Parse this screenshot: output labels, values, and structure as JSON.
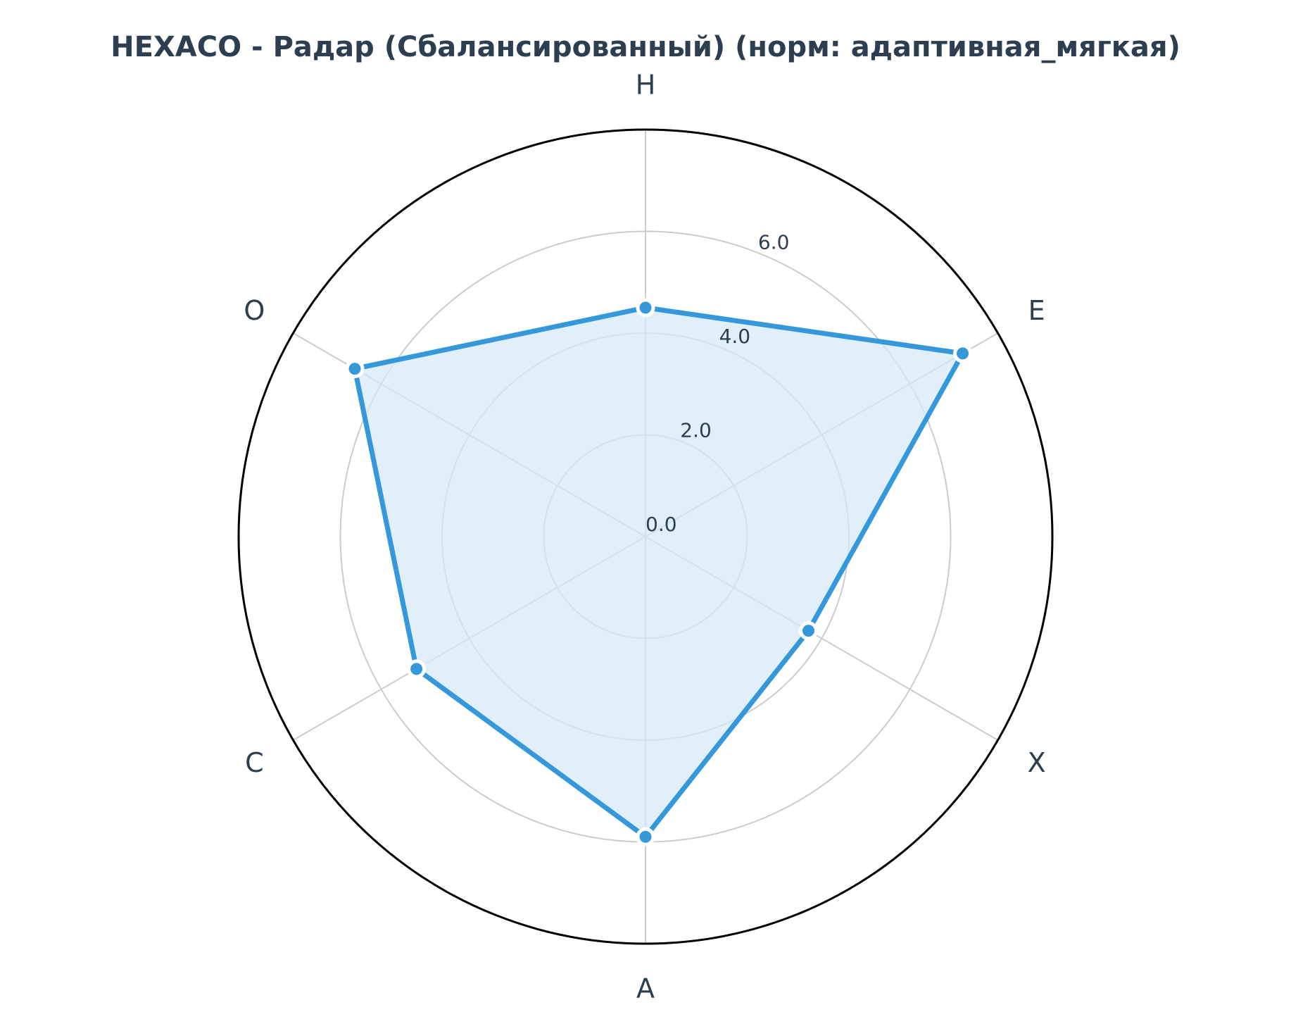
{
  "chart_data": {
    "type": "radar",
    "title": "HEXACO - Радар (Сбалансированный) (норм: адаптивная_мягкая)",
    "categories": [
      "H",
      "E",
      "X",
      "A",
      "C",
      "O"
    ],
    "series": [
      {
        "values": [
          4.5,
          7.2,
          3.7,
          5.9,
          5.2,
          6.6
        ]
      }
    ],
    "rlim": [
      0,
      8
    ],
    "radial_ticks": [
      "0.0",
      "2.0",
      "4.0",
      "6.0"
    ],
    "radial_tick_values": [
      0,
      2,
      4,
      6
    ],
    "grid_circles": [
      2,
      4,
      6
    ],
    "grid": true,
    "colors": {
      "line": "#3498db",
      "fill": "#d6e9f8",
      "grid": "#cccccc",
      "frame": "#000000",
      "text": "#2c3e50"
    }
  }
}
